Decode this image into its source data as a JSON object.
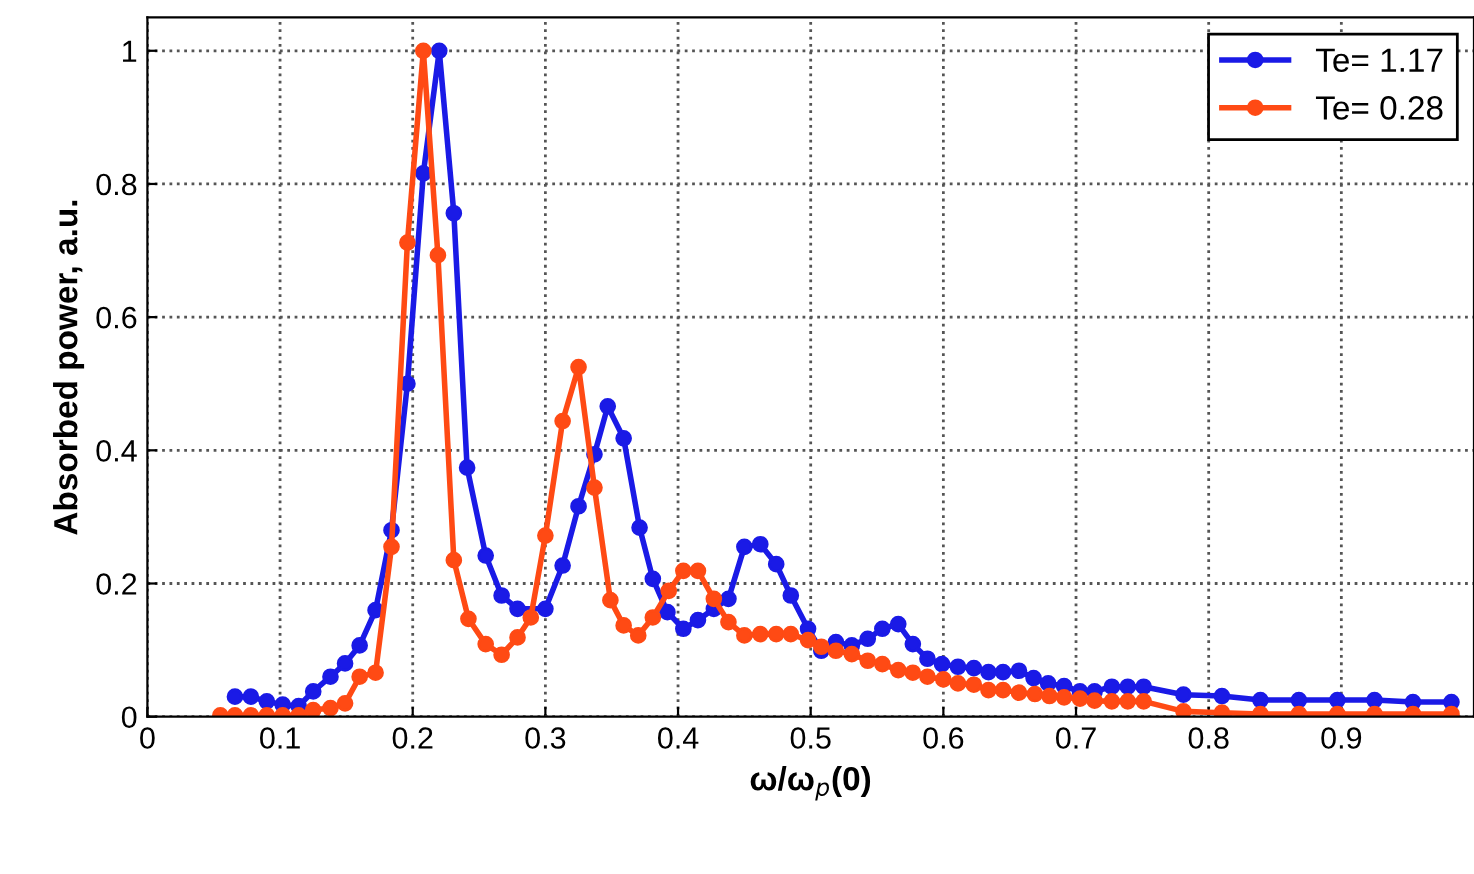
{
  "chart_data": {
    "type": "line",
    "xlabel": "ω/ω$_{p}$(0)",
    "ylabel": "Absorbed power, a.u.",
    "xlim": [
      0,
      1
    ],
    "ylim": [
      0,
      1.05
    ],
    "xticks": [
      0,
      0.1,
      0.2,
      0.3,
      0.4,
      0.5,
      0.6,
      0.7,
      0.8,
      0.9
    ],
    "yticks": [
      0,
      0.2,
      0.4,
      0.6,
      0.8,
      1
    ],
    "grid": true,
    "legend": "top right",
    "marker": "circle",
    "line_style": "solid",
    "series": [
      {
        "name": "Te= 1.17",
        "color": "#1a1ae6",
        "x": [
          0.066,
          0.078,
          0.09,
          0.102,
          0.114,
          0.125,
          0.138,
          0.149,
          0.16,
          0.172,
          0.184,
          0.196,
          0.208,
          0.22,
          0.231,
          0.241,
          0.255,
          0.267,
          0.279,
          0.3,
          0.313,
          0.325,
          0.337,
          0.347,
          0.359,
          0.371,
          0.381,
          0.392,
          0.404,
          0.415,
          0.427,
          0.438,
          0.45,
          0.462,
          0.474,
          0.485,
          0.498,
          0.508,
          0.519,
          0.531,
          0.543,
          0.554,
          0.566,
          0.577,
          0.588,
          0.599,
          0.611,
          0.623,
          0.634,
          0.645,
          0.657,
          0.668,
          0.679,
          0.691,
          0.703,
          0.714,
          0.727,
          0.739,
          0.751,
          0.781,
          0.81,
          0.839,
          0.868,
          0.897,
          0.925,
          0.954,
          0.983
        ],
        "values": [
          0.03,
          0.03,
          0.023,
          0.018,
          0.016,
          0.038,
          0.06,
          0.08,
          0.107,
          0.16,
          0.28,
          0.5,
          0.816,
          1.0,
          0.756,
          0.374,
          0.242,
          0.182,
          0.162,
          0.162,
          0.227,
          0.316,
          0.394,
          0.466,
          0.418,
          0.284,
          0.207,
          0.157,
          0.132,
          0.145,
          0.162,
          0.177,
          0.255,
          0.259,
          0.229,
          0.182,
          0.132,
          0.099,
          0.112,
          0.107,
          0.117,
          0.132,
          0.139,
          0.109,
          0.087,
          0.079,
          0.075,
          0.073,
          0.067,
          0.067,
          0.069,
          0.058,
          0.05,
          0.046,
          0.038,
          0.038,
          0.045,
          0.045,
          0.045,
          0.033,
          0.031,
          0.025,
          0.025,
          0.025,
          0.025,
          0.022,
          0.022
        ]
      },
      {
        "name": "Te= 0.28",
        "color": "#ff4a14",
        "x": [
          0.055,
          0.066,
          0.078,
          0.09,
          0.102,
          0.114,
          0.125,
          0.138,
          0.149,
          0.16,
          0.172,
          0.184,
          0.196,
          0.208,
          0.219,
          0.231,
          0.242,
          0.255,
          0.267,
          0.279,
          0.289,
          0.3,
          0.313,
          0.325,
          0.337,
          0.349,
          0.359,
          0.37,
          0.381,
          0.393,
          0.404,
          0.415,
          0.427,
          0.438,
          0.45,
          0.462,
          0.474,
          0.485,
          0.498,
          0.508,
          0.519,
          0.531,
          0.543,
          0.554,
          0.566,
          0.577,
          0.588,
          0.6,
          0.611,
          0.623,
          0.634,
          0.645,
          0.657,
          0.669,
          0.68,
          0.691,
          0.703,
          0.714,
          0.727,
          0.739,
          0.751,
          0.781,
          0.81,
          0.839,
          0.868,
          0.897,
          0.925,
          0.954,
          0.983
        ],
        "values": [
          0.002,
          0.002,
          0.002,
          0.002,
          0.002,
          0.002,
          0.01,
          0.013,
          0.02,
          0.06,
          0.066,
          0.255,
          0.712,
          1.0,
          0.693,
          0.235,
          0.147,
          0.109,
          0.093,
          0.119,
          0.149,
          0.272,
          0.444,
          0.525,
          0.344,
          0.175,
          0.137,
          0.122,
          0.149,
          0.189,
          0.219,
          0.219,
          0.177,
          0.142,
          0.122,
          0.124,
          0.124,
          0.124,
          0.115,
          0.105,
          0.099,
          0.094,
          0.084,
          0.079,
          0.07,
          0.066,
          0.06,
          0.056,
          0.05,
          0.048,
          0.04,
          0.04,
          0.036,
          0.034,
          0.031,
          0.029,
          0.027,
          0.024,
          0.023,
          0.023,
          0.023,
          0.008,
          0.006,
          0.004,
          0.004,
          0.004,
          0.004,
          0.004,
          0.004
        ]
      }
    ]
  }
}
